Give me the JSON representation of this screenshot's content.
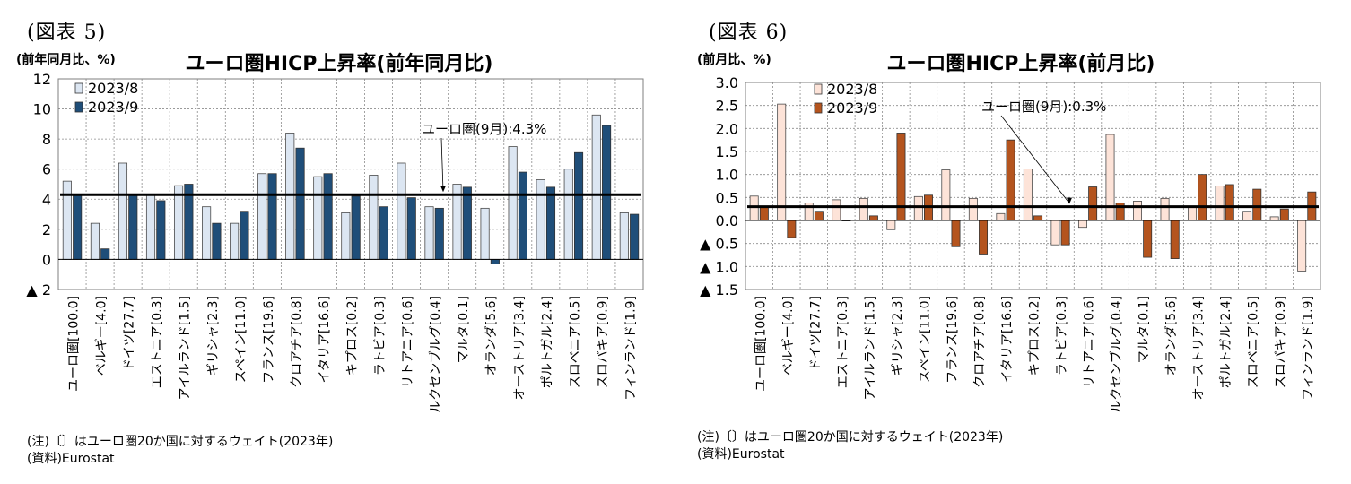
{
  "figures": [
    {
      "label": "(図表 5)",
      "note": "(注)〔〕はユーロ圏20か国に対するウェイト(2023年)",
      "source": "(資料)Eurostat",
      "chart_data": {
        "type": "bar",
        "title": "ユーロ圏HICP上昇率(前年同月比)",
        "ylabel": "(前年同月比、%)",
        "ylim": [
          -2,
          12
        ],
        "yticks": [
          12,
          10,
          8,
          6,
          4,
          2,
          0,
          -2
        ],
        "ytick_labels": [
          "12",
          "10",
          "8",
          "6",
          "4",
          "2",
          "0",
          "▲ 2"
        ],
        "grid": true,
        "legend": "top-left",
        "categories": [
          "ユーロ圏[100.0]",
          "ベルギー[4.0]",
          "ドイツ[27.7]",
          "エストニア[0.3]",
          "アイルランド[1.5]",
          "ギリシャ[2.3]",
          "スペイン[11.0]",
          "フランス[19.6]",
          "クロアチア[0.8]",
          "イタリア[16.6]",
          "キプロス[0.2]",
          "ラトビア[0.3]",
          "リトアニア[0.6]",
          "ルクセンブルグ[0.4]",
          "マルタ[0.1]",
          "オランダ[5.6]",
          "オーストリア[3.4]",
          "ポルトガル[2.4]",
          "スロベニア[0.5]",
          "スロバキア[0.9]",
          "フィンランド[1.9]"
        ],
        "series": [
          {
            "name": "2023/8",
            "color": "#dce6f2",
            "values": [
              5.2,
              2.4,
              6.4,
              4.3,
              4.9,
              3.5,
              2.4,
              5.7,
              8.4,
              5.5,
              3.1,
              5.6,
              6.4,
              3.5,
              5.0,
              3.4,
              7.5,
              5.3,
              6.0,
              9.6,
              3.1
            ]
          },
          {
            "name": "2023/9",
            "color": "#1f4e79",
            "values": [
              4.3,
              0.7,
              4.3,
              3.9,
              5.0,
              2.4,
              3.2,
              5.7,
              7.4,
              5.7,
              4.2,
              3.5,
              4.1,
              3.4,
              4.8,
              -0.3,
              5.8,
              4.8,
              7.1,
              8.9,
              3.0
            ]
          }
        ],
        "reference_line": {
          "value": 4.3,
          "label": "ユーロ圏(9月):4.3%"
        }
      }
    },
    {
      "label": "(図表 6)",
      "note": "(注)〔〕はユーロ圏20か国に対するウェイト(2023年)",
      "source": "(資料)Eurostat",
      "chart_data": {
        "type": "bar",
        "title": "ユーロ圏HICP上昇率(前月比)",
        "ylabel": "(前月比、%)",
        "ylim": [
          -1.5,
          3.0
        ],
        "yticks": [
          3.0,
          2.5,
          2.0,
          1.5,
          1.0,
          0.5,
          0.0,
          -0.5,
          -1.0,
          -1.5
        ],
        "ytick_labels": [
          "3.0",
          "2.5",
          "2.0",
          "1.5",
          "1.0",
          "0.5",
          "0.0",
          "▲ 0.5",
          "▲ 1.0",
          "▲ 1.5"
        ],
        "grid": true,
        "legend": "top-left",
        "categories": [
          "ユーロ圏[100.0]",
          "ベルギー[4.0]",
          "ドイツ[27.7]",
          "エストニア[0.3]",
          "アイルランド[1.5]",
          "ギリシャ[2.3]",
          "スペイン[11.0]",
          "フランス[19.6]",
          "クロアチア[0.8]",
          "イタリア[16.6]",
          "キプロス[0.2]",
          "ラトビア[0.3]",
          "リトアニア[0.6]",
          "ルクセンブルグ[0.4]",
          "マルタ[0.1]",
          "オランダ[5.6]",
          "オーストリア[3.4]",
          "ポルトガル[2.4]",
          "スロベニア[0.5]",
          "スロバキア[0.9]",
          "フィンランド[1.9]"
        ],
        "series": [
          {
            "name": "2023/8",
            "color": "#fde3d8",
            "values": [
              0.53,
              2.53,
              0.38,
              0.45,
              0.48,
              -0.2,
              0.52,
              1.1,
              0.48,
              0.15,
              1.12,
              -0.53,
              -0.15,
              1.87,
              0.42,
              0.48,
              0.3,
              0.75,
              0.2,
              0.08,
              -1.1
            ]
          },
          {
            "name": "2023/9",
            "color": "#b4541e",
            "values": [
              0.3,
              -0.37,
              0.2,
              0.0,
              0.1,
              1.9,
              0.55,
              -0.57,
              -0.73,
              1.75,
              0.1,
              -0.53,
              0.73,
              0.38,
              -0.8,
              -0.83,
              1.0,
              0.78,
              0.68,
              0.25,
              0.62
            ]
          }
        ],
        "reference_line": {
          "value": 0.3,
          "label": "ユーロ圏(9月):0.3%"
        }
      }
    }
  ]
}
